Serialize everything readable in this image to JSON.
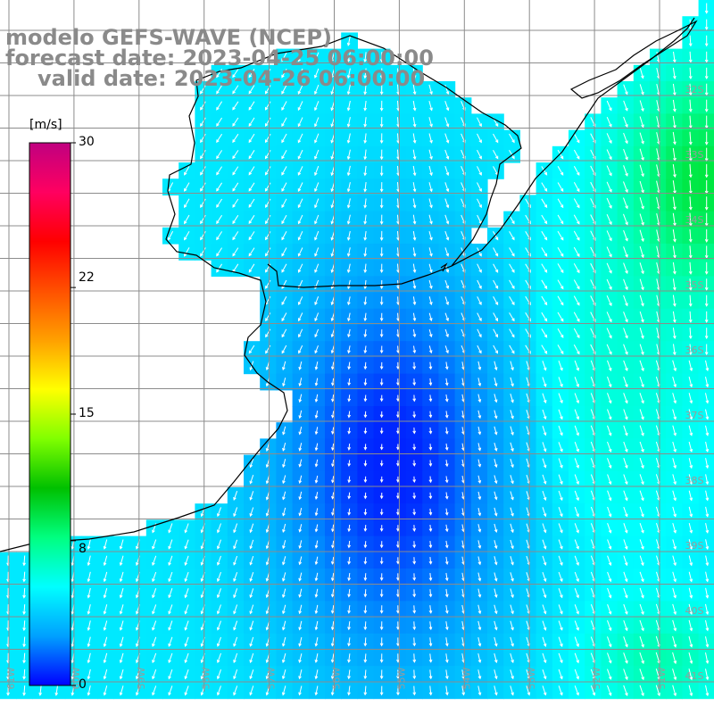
{
  "title": {
    "line1": "modelo GEFS-WAVE (NCEP)",
    "line2": "forecast date: 2023-04-25 06:00:00",
    "line3": "valid date: 2023-04-26 06:00:00"
  },
  "colorbar": {
    "unit": "[m/s]",
    "min": 0,
    "max": 30,
    "tick_labels": [
      "30",
      "22",
      "15",
      "8",
      "0"
    ],
    "tick_values": [
      30,
      22,
      15,
      8,
      0
    ],
    "colors": [
      "#0000ff",
      "#00a0ff",
      "#00ffff",
      "#00ff80",
      "#00c000",
      "#80ff00",
      "#ffff00",
      "#ffa000",
      "#ff5000",
      "#ff0000",
      "#ff0060",
      "#c00080"
    ]
  },
  "map": {
    "lat_labels": [
      "32S",
      "33S",
      "34S",
      "35S",
      "36S",
      "37S",
      "38S",
      "39S",
      "40S",
      "41S"
    ],
    "lon_labels": [
      "61W",
      "60W",
      "59W",
      "58W",
      "57W",
      "56W",
      "55W",
      "54W",
      "53W",
      "52W",
      "51W"
    ],
    "land_color": "#ffffff",
    "grid_color": "#808080",
    "coast_color": "#000000",
    "arrow_color": "#ffffff"
  }
}
